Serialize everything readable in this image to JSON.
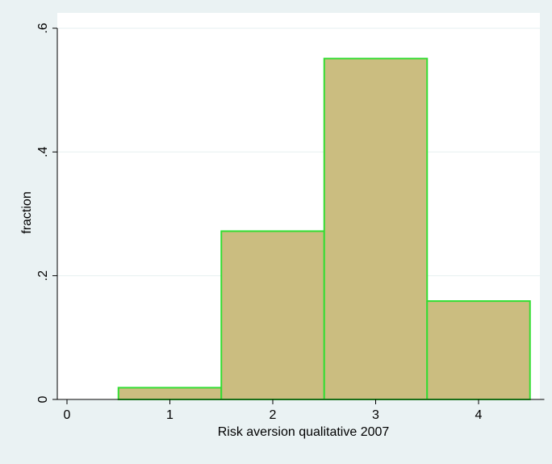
{
  "chart_data": {
    "type": "bar",
    "histogram": true,
    "bins": [
      {
        "center": 0,
        "value": 0.0
      },
      {
        "center": 1,
        "value": 0.019
      },
      {
        "center": 2,
        "value": 0.272
      },
      {
        "center": 3,
        "value": 0.551
      },
      {
        "center": 4,
        "value": 0.159
      }
    ],
    "bin_width": 1,
    "xlabel": "Risk aversion qualitative 2007",
    "ylabel": "fraction",
    "xlim": [
      -0.1,
      4.6
    ],
    "ylim": [
      0,
      0.6
    ],
    "xticks": [
      {
        "value": 0,
        "label": "0"
      },
      {
        "value": 1,
        "label": "1"
      },
      {
        "value": 2,
        "label": "2"
      },
      {
        "value": 3,
        "label": "3"
      },
      {
        "value": 4,
        "label": "4"
      }
    ],
    "yticks": [
      {
        "value": 0,
        "label": "0"
      },
      {
        "value": 0.2,
        "label": ".2"
      },
      {
        "value": 0.4,
        "label": ".4"
      },
      {
        "value": 0.6,
        "label": ".6"
      }
    ],
    "grid": true,
    "colors": {
      "page_background": "#eaf2f3",
      "plot_background": "#ffffff",
      "bar_fill": "#cbbd80",
      "bar_outline": "#33dd33",
      "grid": "#eaf2f3",
      "axis": "#000000"
    }
  }
}
